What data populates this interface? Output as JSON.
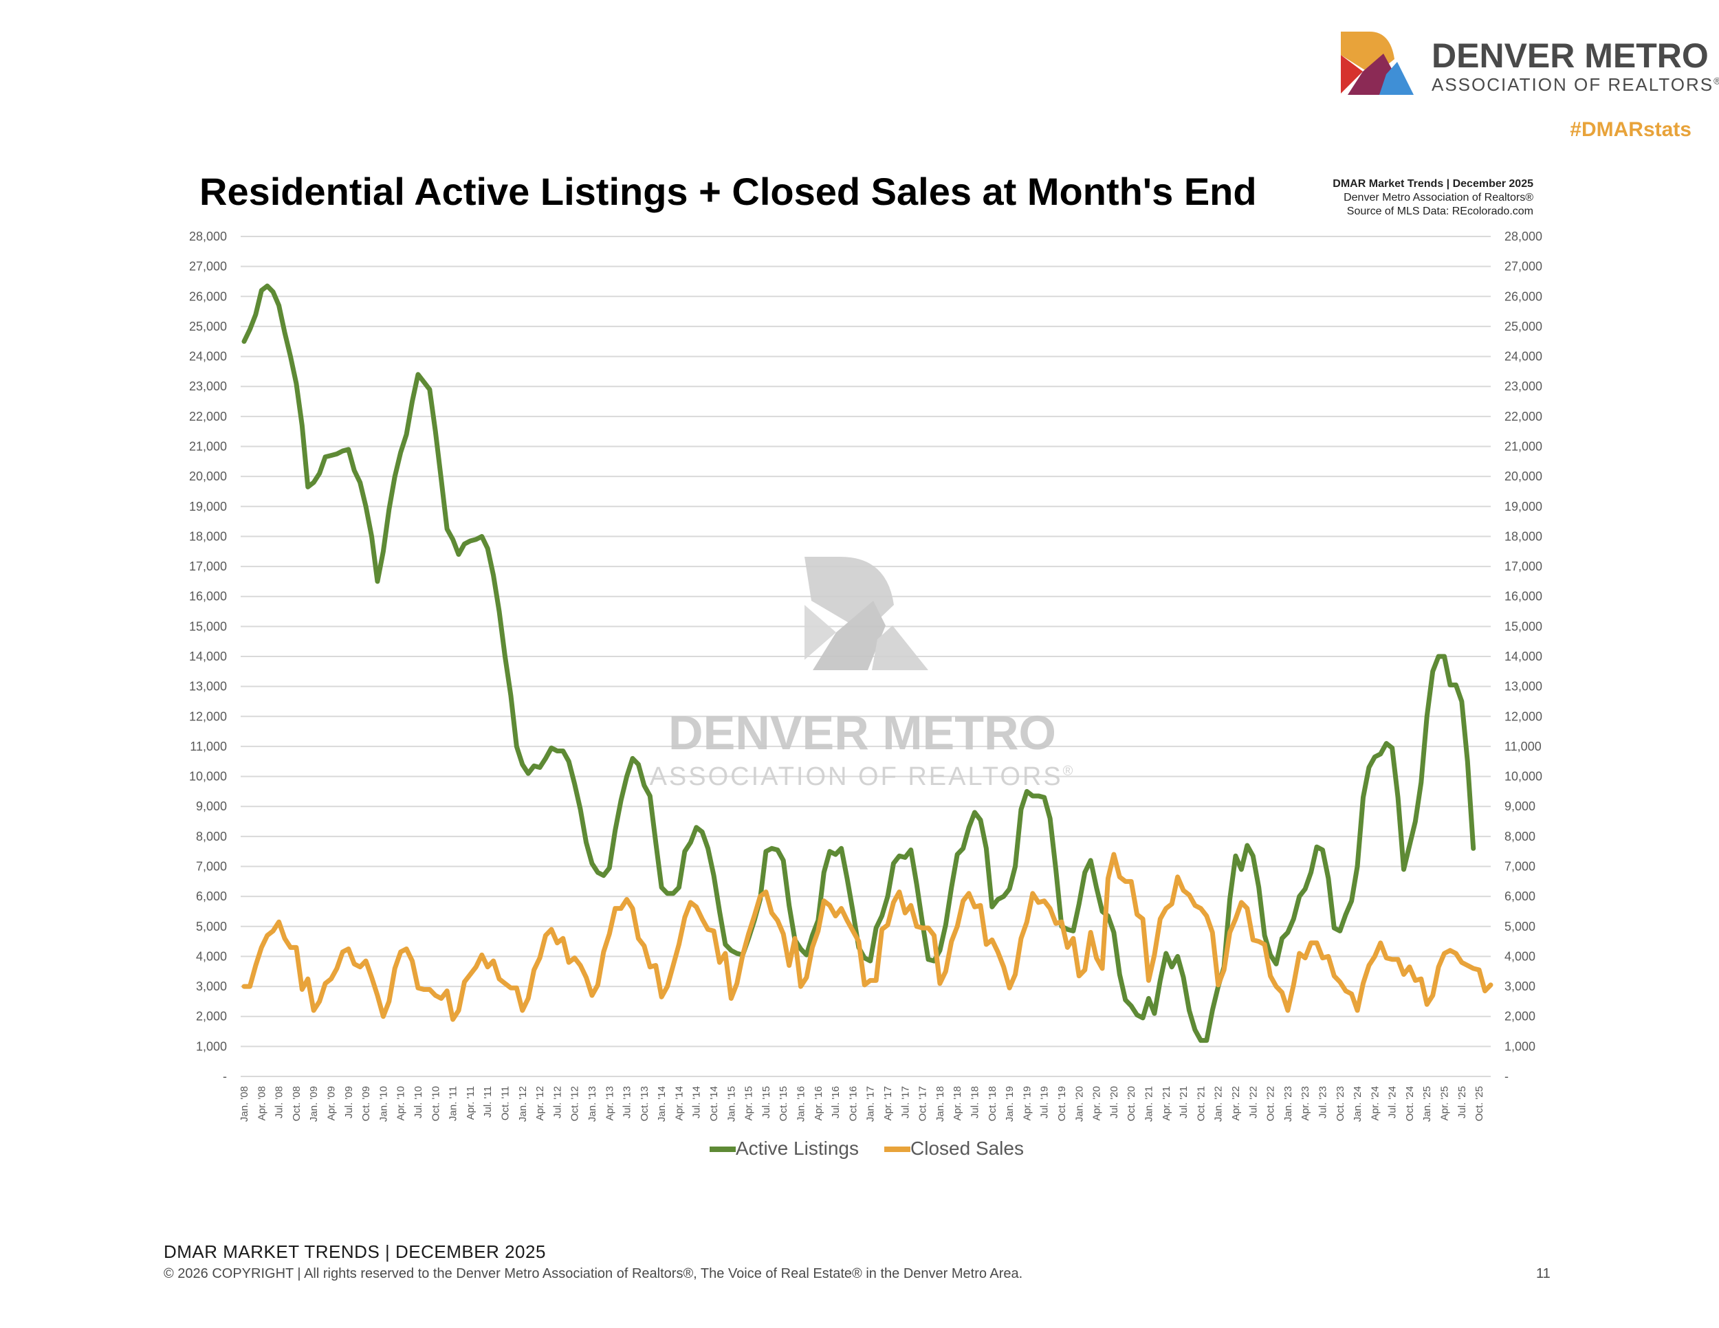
{
  "logo": {
    "name_line1": "DENVER METRO",
    "name_line2": "ASSOCIATION OF REALTORS",
    "registered": "®"
  },
  "hashtag": "#DMARstats",
  "source_note": {
    "line1": "DMAR Market Trends | December 2025",
    "line2": "Denver Metro Association of Realtors®",
    "line3": "Source of MLS Data: REcolorado.com"
  },
  "footer": {
    "line1": "DMAR MARKET TRENDS | DECEMBER 2025",
    "line2": "© 2026 COPYRIGHT | All rights reserved to the Denver Metro Association of Realtors®, The Voice of Real Estate® in the Denver Metro Area.",
    "page_number": "11"
  },
  "colors": {
    "active": "#5e8a35",
    "closed": "#e8a33a",
    "logo_orange": "#e8a33a",
    "logo_red": "#d6322e",
    "logo_plum": "#8b2a55",
    "logo_blue": "#3f8fd6",
    "watermark": "#c8c8c8"
  },
  "chart_data": {
    "type": "line",
    "title": "Residential Active Listings + Closed Sales at Month's End",
    "watermark_line1": "DENVER METRO",
    "watermark_line2": "ASSOCIATION OF REALTORS",
    "watermark_registered": "®",
    "left_ticks": [
      "-",
      "1,000",
      "2,000",
      "3,000",
      "4,000",
      "5,000",
      "6,000",
      "7,000",
      "8,000",
      "9,000",
      "10,000",
      "11,000",
      "12,000",
      "13,000",
      "14,000",
      "15,000",
      "16,000",
      "17,000",
      "18,000",
      "19,000",
      "20,000",
      "21,000",
      "22,000",
      "23,000",
      "24,000",
      "25,000",
      "26,000",
      "27,000",
      "28,000"
    ],
    "right_ticks": [
      "-",
      "1,000",
      "2,000",
      "3,000",
      "4,000",
      "5,000",
      "6,000",
      "7,000",
      "8,000",
      "9,000",
      "10,000",
      "11,000",
      "12,000",
      "13,000",
      "14,000",
      "15,000",
      "16,000",
      "17,000",
      "18,000",
      "19,000",
      "20,000",
      "21,000",
      "22,000",
      "23,000",
      "24,000",
      "25,000",
      "26,000",
      "27,000",
      "28,000"
    ],
    "ylim": [
      0,
      28000
    ],
    "y2lim": [
      0,
      28000
    ],
    "x_labels": [
      "Jan. '08",
      "Apr. '08",
      "Jul. '08",
      "Oct. '08",
      "Jan. '09",
      "Apr. '09",
      "Jul. '09",
      "Oct. '09",
      "Jan. '10",
      "Apr. '10",
      "Jul. '10",
      "Oct. '10",
      "Jan. '11",
      "Apr. '11",
      "Jul. '11",
      "Oct. '11",
      "Jan. '12",
      "Apr. '12",
      "Jul. '12",
      "Oct. '12",
      "Jan. '13",
      "Apr. '13",
      "Jul. '13",
      "Oct. '13",
      "Jan. '14",
      "Apr. '14",
      "Jul. '14",
      "Oct. '14",
      "Jan. '15",
      "Apr. '15",
      "Jul. '15",
      "Oct. '15",
      "Jan. '16",
      "Apr. '16",
      "Jul. '16",
      "Oct. '16",
      "Jan. '17",
      "Apr. '17",
      "Jul. '17",
      "Oct. '17",
      "Jan. '18",
      "Apr. '18",
      "Jul. '18",
      "Oct. '18",
      "Jan. '19",
      "Apr. '19",
      "Jul. '19",
      "Oct. '19",
      "Jan. '20",
      "Apr. '20",
      "Jul. '20",
      "Oct. '20",
      "Jan. '21",
      "Apr. '21",
      "Jul. '21",
      "Oct. '21",
      "Jan. '22",
      "Apr. '22",
      "Jul. '22",
      "Oct. '22",
      "Jan. '23",
      "Apr. '23",
      "Jul. '23",
      "Oct. '23",
      "Jan. '24",
      "Apr. '24",
      "Jul. '24",
      "Oct. '24",
      "Jan. '25",
      "Apr. '25",
      "Jul. '25",
      "Oct. '25"
    ],
    "n_months": 216,
    "series": [
      {
        "name": "Active Listings",
        "axis": "left",
        "values": [
          24500,
          24900,
          25400,
          26200,
          26350,
          26150,
          25700,
          24800,
          24000,
          23100,
          21700,
          19650,
          19800,
          20100,
          20650,
          20700,
          20750,
          20850,
          20900,
          20200,
          19800,
          19000,
          18000,
          16500,
          17500,
          18900,
          20000,
          20800,
          21400,
          22500,
          23400,
          23150,
          22900,
          21500,
          19900,
          18250,
          17900,
          17400,
          17750,
          17850,
          17900,
          18000,
          17600,
          16700,
          15500,
          14000,
          12700,
          11000,
          10400,
          10100,
          10350,
          10300,
          10600,
          10950,
          10850,
          10850,
          10500,
          9750,
          8900,
          7800,
          7100,
          6800,
          6700,
          6950,
          8200,
          9200,
          10000,
          10600,
          10400,
          9700,
          9350,
          7800,
          6300,
          6100,
          6100,
          6300,
          7500,
          7800,
          8300,
          8150,
          7600,
          6700,
          5500,
          4400,
          4200,
          4100,
          4050,
          4600,
          5200,
          5900,
          7500,
          7600,
          7550,
          7200,
          5700,
          4550,
          4250,
          4050,
          4700,
          5200,
          6800,
          7500,
          7400,
          7600,
          6600,
          5500,
          4300,
          3950,
          3850,
          4950,
          5350,
          6000,
          7100,
          7350,
          7300,
          7550,
          6400,
          5100,
          3900,
          3850,
          4200,
          5050,
          6300,
          7400,
          7600,
          8300,
          8800,
          8550,
          7600,
          5650,
          5900,
          6000,
          6250,
          7000,
          8900,
          9500,
          9350,
          9350,
          9300,
          8600,
          6900,
          5000,
          4900,
          4850,
          5750,
          6800,
          7200,
          6300,
          5500,
          5350,
          4800,
          3400,
          2550,
          2350,
          2050,
          1950,
          2600,
          2100,
          3200,
          4100,
          3650,
          4000,
          3300,
          2200,
          1550,
          1200,
          1200,
          2200,
          3000,
          3650,
          5900,
          7350,
          6900,
          7700,
          7350,
          6300,
          4700,
          4050,
          3750,
          4600,
          4800,
          5250,
          6000,
          6250,
          6800,
          7650,
          7550,
          6600,
          4950,
          4850,
          5400,
          5850,
          7000,
          9300,
          10300,
          10650,
          10750,
          11100,
          10950,
          9300,
          6900,
          7700,
          8500,
          9800,
          12000,
          13500,
          14000,
          14000,
          13050,
          13050,
          12500,
          10500,
          7600
        ]
      },
      {
        "name": "Closed Sales",
        "axis": "right",
        "values": [
          3000,
          3000,
          3700,
          4300,
          4700,
          4850,
          5150,
          4600,
          4300,
          4300,
          2900,
          3250,
          2200,
          2500,
          3100,
          3250,
          3600,
          4150,
          4250,
          3750,
          3650,
          3850,
          3300,
          2700,
          2000,
          2500,
          3600,
          4150,
          4250,
          3850,
          2950,
          2900,
          2900,
          2700,
          2600,
          2850,
          1900,
          2200,
          3150,
          3400,
          3650,
          4050,
          3650,
          3850,
          3250,
          3100,
          2950,
          2950,
          2200,
          2600,
          3550,
          3950,
          4700,
          4900,
          4450,
          4600,
          3800,
          3950,
          3700,
          3300,
          2700,
          3050,
          4150,
          4750,
          5600,
          5600,
          5900,
          5600,
          4600,
          4350,
          3650,
          3700,
          2650,
          3000,
          3700,
          4400,
          5300,
          5800,
          5650,
          5250,
          4900,
          4850,
          3800,
          4100,
          2600,
          3100,
          4050,
          4750,
          5350,
          6000,
          6150,
          5450,
          5200,
          4750,
          3700,
          4600,
          3000,
          3300,
          4300,
          4850,
          5850,
          5700,
          5350,
          5600,
          5200,
          4850,
          4500,
          3050,
          3200,
          3200,
          4900,
          5050,
          5800,
          6150,
          5450,
          5700,
          5000,
          4950,
          4950,
          4700,
          3100,
          3500,
          4500,
          5000,
          5850,
          6100,
          5650,
          5700,
          4400,
          4550,
          4150,
          3650,
          2950,
          3400,
          4600,
          5150,
          6100,
          5800,
          5850,
          5600,
          5100,
          5150,
          4300,
          4600,
          3350,
          3550,
          4800,
          3950,
          3600,
          6600,
          7400,
          6650,
          6500,
          6500,
          5400,
          5250,
          3200,
          4050,
          5250,
          5600,
          5750,
          6650,
          6200,
          6050,
          5700,
          5600,
          5350,
          4800,
          3050,
          3550,
          4800,
          5250,
          5800,
          5600,
          4550,
          4500,
          4400,
          3350,
          3000,
          2800,
          2200,
          3050,
          4100,
          3950,
          4450,
          4450,
          3950,
          4000,
          3350,
          3150,
          2850,
          2750,
          2200,
          3100,
          3700,
          4000,
          4450,
          3950,
          3900,
          3900,
          3400,
          3650,
          3200,
          3250,
          2400,
          2700,
          3650,
          4100,
          4200,
          4100,
          3800,
          3700,
          3600,
          3550,
          2850,
          3050
        ]
      }
    ],
    "legend": [
      "Active Listings",
      "Closed Sales"
    ],
    "legend_position": "bottom"
  }
}
